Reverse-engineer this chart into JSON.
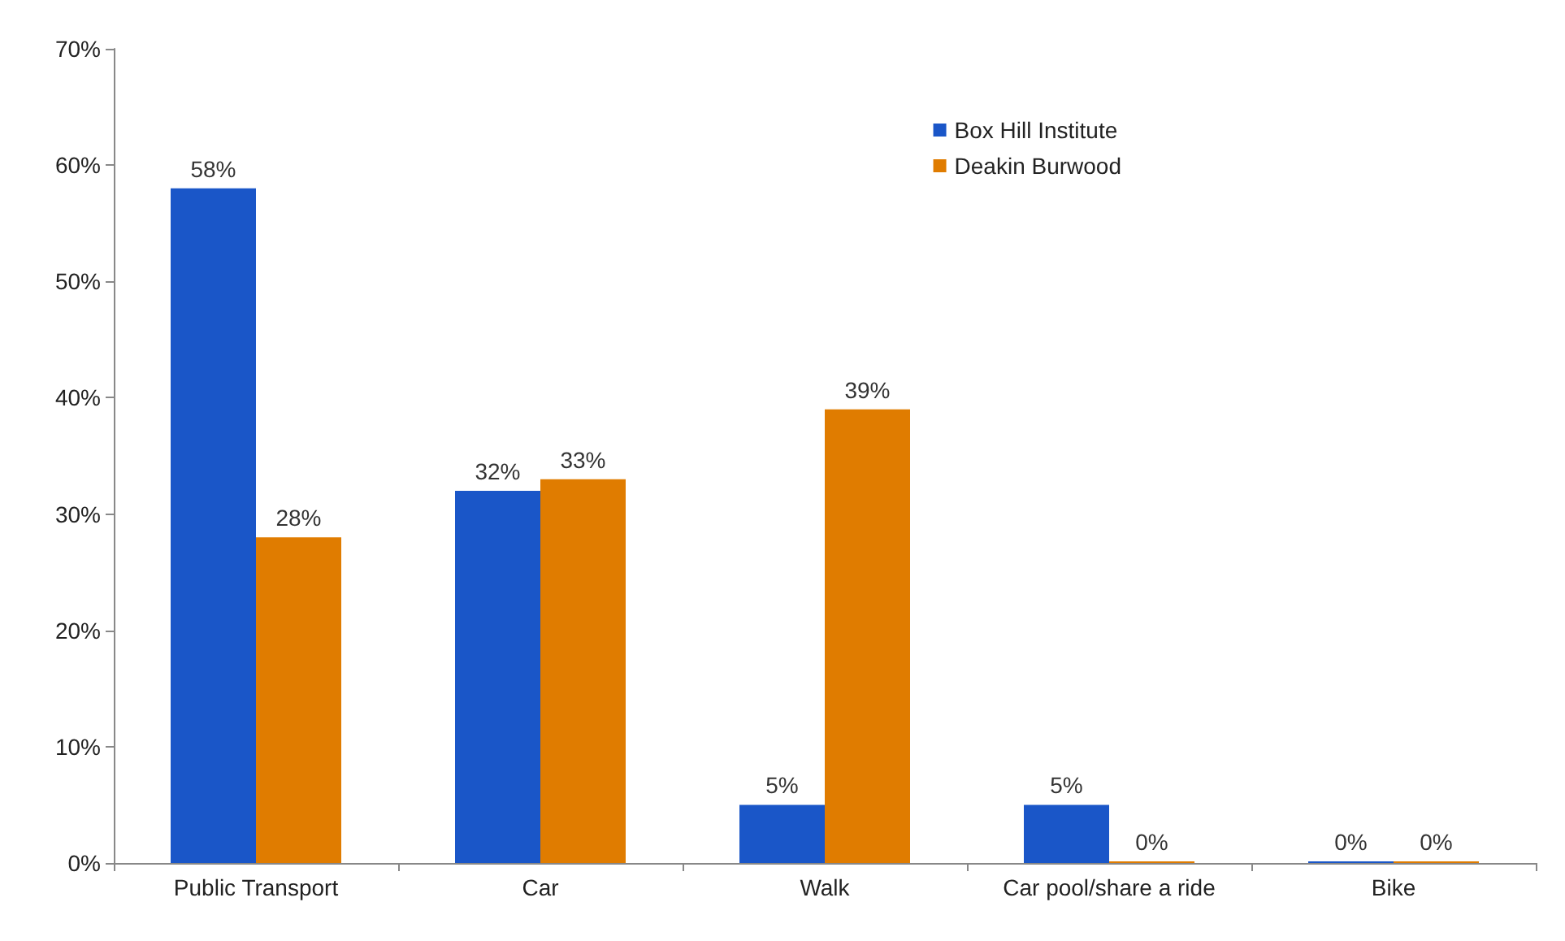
{
  "chart_data": {
    "type": "bar",
    "categories": [
      "Public Transport",
      "Car",
      "Walk",
      "Car pool/share a ride",
      "Bike"
    ],
    "series": [
      {
        "name": "Box Hill Institute",
        "color": "#1a56c8",
        "values": [
          58,
          32,
          5,
          5,
          0
        ],
        "value_labels": [
          "58%",
          "32%",
          "5%",
          "5%",
          "0%"
        ]
      },
      {
        "name": "Deakin Burwood",
        "color": "#e07c00",
        "values": [
          28,
          33,
          39,
          0,
          0
        ],
        "value_labels": [
          "28%",
          "33%",
          "39%",
          "0%",
          "0%"
        ]
      }
    ],
    "ylim": [
      0,
      70
    ],
    "yticks": [
      {
        "value": 0,
        "label": "0%"
      },
      {
        "value": 10,
        "label": "10%"
      },
      {
        "value": 20,
        "label": "20%"
      },
      {
        "value": 30,
        "label": "30%"
      },
      {
        "value": 40,
        "label": "40%"
      },
      {
        "value": 50,
        "label": "50%"
      },
      {
        "value": 60,
        "label": "60%"
      },
      {
        "value": 70,
        "label": "70%"
      }
    ],
    "grid": false,
    "legend": "top right"
  }
}
